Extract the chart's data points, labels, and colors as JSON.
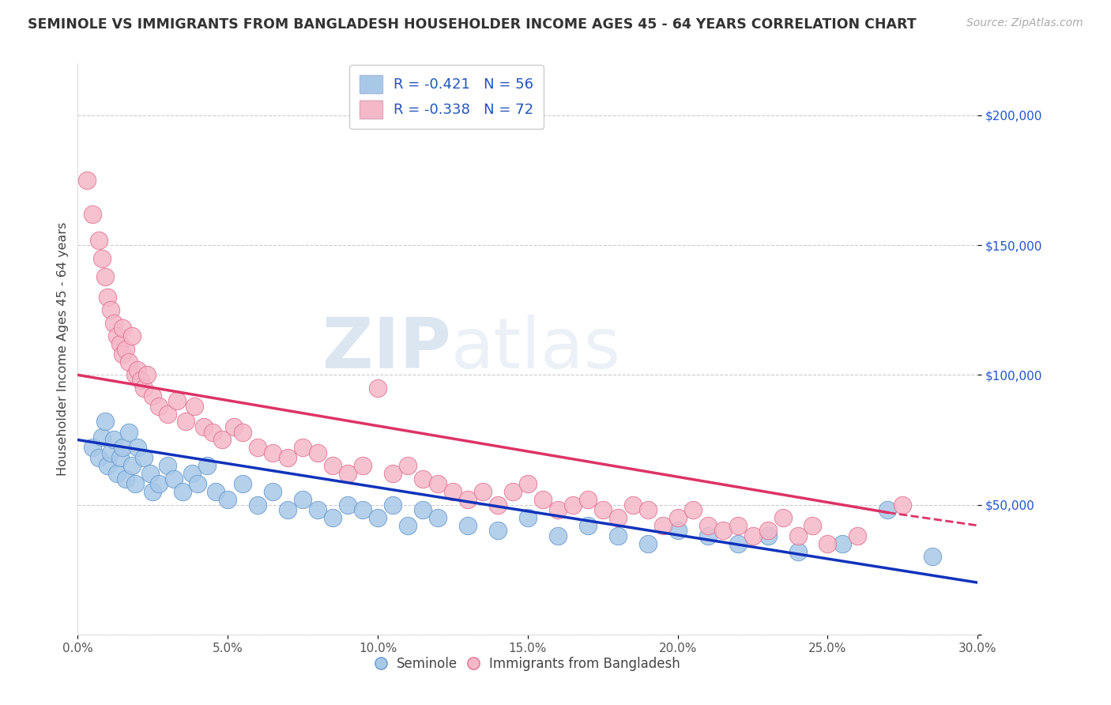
{
  "title": "SEMINOLE VS IMMIGRANTS FROM BANGLADESH HOUSEHOLDER INCOME AGES 45 - 64 YEARS CORRELATION CHART",
  "source": "Source: ZipAtlas.com",
  "ylabel": "Householder Income Ages 45 - 64 years",
  "xlim": [
    0.0,
    0.3
  ],
  "ylim": [
    0,
    220000
  ],
  "xticks": [
    0.0,
    0.05,
    0.1,
    0.15,
    0.2,
    0.25,
    0.3
  ],
  "xticklabels": [
    "0.0%",
    "5.0%",
    "10.0%",
    "15.0%",
    "20.0%",
    "25.0%",
    "30.0%"
  ],
  "yticks": [
    0,
    50000,
    100000,
    150000,
    200000
  ],
  "yticklabels": [
    "",
    "$50,000",
    "$100,000",
    "$150,000",
    "$200,000"
  ],
  "seminole_color": "#a8c8e8",
  "seminole_edge": "#6699cc",
  "bangladesh_color": "#f5b8c8",
  "bangladesh_edge": "#e07090",
  "trend_blue": "#1133bb",
  "trend_pink": "#dd3366",
  "R1": "-0.421",
  "N1": "56",
  "R2": "-0.338",
  "N2": "72",
  "label1": "Seminole",
  "label2": "Immigrants from Bangladesh",
  "watermark_zip": "ZIP",
  "watermark_atlas": "atlas",
  "seminole_x": [
    0.005,
    0.007,
    0.008,
    0.009,
    0.01,
    0.011,
    0.012,
    0.013,
    0.014,
    0.015,
    0.016,
    0.017,
    0.018,
    0.019,
    0.02,
    0.022,
    0.024,
    0.025,
    0.027,
    0.03,
    0.032,
    0.035,
    0.038,
    0.04,
    0.043,
    0.046,
    0.05,
    0.055,
    0.06,
    0.065,
    0.07,
    0.075,
    0.08,
    0.085,
    0.09,
    0.095,
    0.1,
    0.105,
    0.11,
    0.115,
    0.12,
    0.13,
    0.14,
    0.15,
    0.16,
    0.17,
    0.18,
    0.19,
    0.2,
    0.21,
    0.22,
    0.23,
    0.24,
    0.255,
    0.27,
    0.285
  ],
  "seminole_y": [
    72000,
    68000,
    76000,
    82000,
    65000,
    70000,
    75000,
    62000,
    68000,
    72000,
    60000,
    78000,
    65000,
    58000,
    72000,
    68000,
    62000,
    55000,
    58000,
    65000,
    60000,
    55000,
    62000,
    58000,
    65000,
    55000,
    52000,
    58000,
    50000,
    55000,
    48000,
    52000,
    48000,
    45000,
    50000,
    48000,
    45000,
    50000,
    42000,
    48000,
    45000,
    42000,
    40000,
    45000,
    38000,
    42000,
    38000,
    35000,
    40000,
    38000,
    35000,
    38000,
    32000,
    35000,
    48000,
    30000
  ],
  "bangladesh_x": [
    0.003,
    0.005,
    0.007,
    0.008,
    0.009,
    0.01,
    0.011,
    0.012,
    0.013,
    0.014,
    0.015,
    0.015,
    0.016,
    0.017,
    0.018,
    0.019,
    0.02,
    0.021,
    0.022,
    0.023,
    0.025,
    0.027,
    0.03,
    0.033,
    0.036,
    0.039,
    0.042,
    0.045,
    0.048,
    0.052,
    0.055,
    0.06,
    0.065,
    0.07,
    0.075,
    0.08,
    0.085,
    0.09,
    0.095,
    0.1,
    0.105,
    0.11,
    0.115,
    0.12,
    0.125,
    0.13,
    0.135,
    0.14,
    0.145,
    0.15,
    0.155,
    0.16,
    0.165,
    0.17,
    0.175,
    0.18,
    0.185,
    0.19,
    0.195,
    0.2,
    0.205,
    0.21,
    0.215,
    0.22,
    0.225,
    0.23,
    0.235,
    0.24,
    0.245,
    0.25,
    0.26,
    0.275
  ],
  "bangladesh_y": [
    175000,
    162000,
    152000,
    145000,
    138000,
    130000,
    125000,
    120000,
    115000,
    112000,
    108000,
    118000,
    110000,
    105000,
    115000,
    100000,
    102000,
    98000,
    95000,
    100000,
    92000,
    88000,
    85000,
    90000,
    82000,
    88000,
    80000,
    78000,
    75000,
    80000,
    78000,
    72000,
    70000,
    68000,
    72000,
    70000,
    65000,
    62000,
    65000,
    95000,
    62000,
    65000,
    60000,
    58000,
    55000,
    52000,
    55000,
    50000,
    55000,
    58000,
    52000,
    48000,
    50000,
    52000,
    48000,
    45000,
    50000,
    48000,
    42000,
    45000,
    48000,
    42000,
    40000,
    42000,
    38000,
    40000,
    45000,
    38000,
    42000,
    35000,
    38000,
    50000
  ]
}
